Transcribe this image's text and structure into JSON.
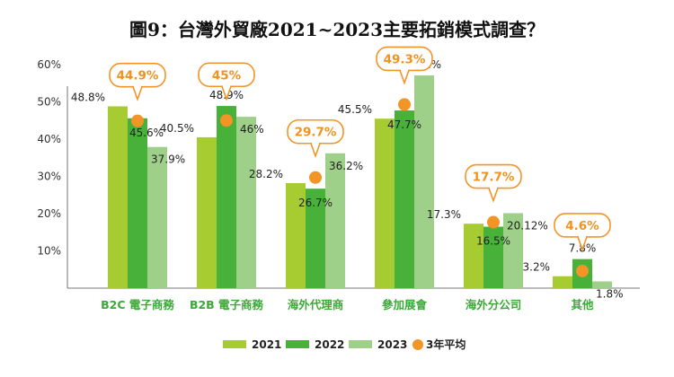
{
  "chart_data": {
    "type": "bar",
    "title": "圖9：台灣外貿廠2021~2023主要拓銷模式調查？",
    "categories": [
      "B2C 電子商務",
      "B2B 電子商務",
      "海外代理商",
      "參加展會",
      "海外分公司",
      "其他"
    ],
    "series": [
      {
        "name": "2021",
        "color": "#a6cc31",
        "values": [
          48.8,
          40.5,
          28.2,
          45.5,
          17.3,
          3.2
        ],
        "labels": [
          "48.8%",
          "40.5%",
          "28.2%",
          "45.5%",
          "17.3%",
          "3.2%"
        ]
      },
      {
        "name": "2022",
        "color": "#47b139",
        "values": [
          45.6,
          48.9,
          26.7,
          47.7,
          16.5,
          7.8
        ],
        "labels": [
          "45.6%",
          "48.9%",
          "26.7%",
          "47.7%",
          "16.5%",
          "7.8%"
        ]
      },
      {
        "name": "2023",
        "color": "#9ed08a",
        "values": [
          37.9,
          46,
          36.2,
          57.1,
          20.12,
          1.8
        ],
        "labels": [
          "37.9%",
          "46%",
          "36.2%",
          "57.1%",
          "20.12%",
          "1.8%"
        ]
      }
    ],
    "average": {
      "name": "3年平均",
      "color": "#f39426",
      "values": [
        44.9,
        45,
        29.7,
        49.3,
        17.7,
        4.6
      ],
      "labels": [
        "44.9%",
        "45%",
        "29.7%",
        "49.3%",
        "17.7%",
        "4.6%"
      ]
    },
    "yticks": [
      "10%",
      "20%",
      "30%",
      "40%",
      "50%",
      "60%"
    ],
    "ylim": [
      0,
      60
    ],
    "grid": false,
    "legend_position": "bottom"
  }
}
